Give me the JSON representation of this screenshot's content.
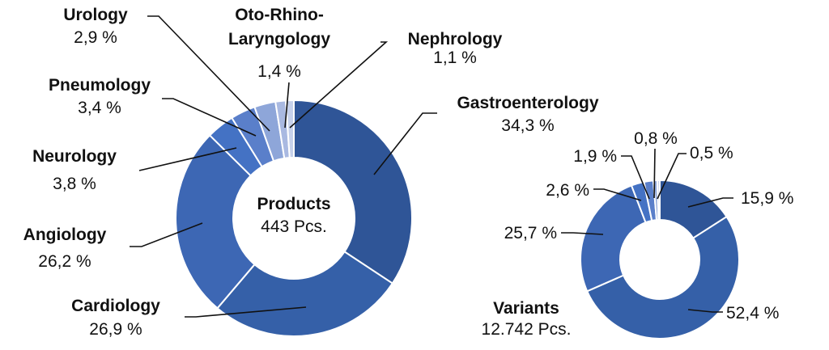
{
  "chart_data": [
    {
      "type": "pie",
      "donut": true,
      "center_title": "Products",
      "center_value": "443 Pcs.",
      "labels": [
        "Gastroenterology",
        "Cardiology",
        "Angiology",
        "Neurology",
        "Pneumology",
        "Urology",
        "Oto-Rhino-Laryngology",
        "Nephrology"
      ],
      "label_lines": {
        "ORL1": "Oto-Rhino-",
        "ORL2": "Laryngology"
      },
      "values": [
        34.3,
        26.9,
        26.2,
        3.8,
        3.4,
        2.9,
        1.4,
        1.1
      ],
      "value_labels": [
        "34,3 %",
        "26,9 %",
        "26,2 %",
        "3,8 %",
        "3,4 %",
        "2,9 %",
        "1,4 %",
        "1,1 %"
      ],
      "colors": [
        "#2f5597",
        "#3560a8",
        "#3d67b4",
        "#4472c4",
        "#5a7fca",
        "#8ea6d9",
        "#a9b9e1",
        "#c6d1eb"
      ]
    },
    {
      "type": "pie",
      "donut": true,
      "center_title": "Variants",
      "center_value": "12.742 Pcs.",
      "values": [
        15.9,
        52.4,
        25.7,
        2.6,
        1.9,
        0.8,
        0.5
      ],
      "value_labels": [
        "15,9 %",
        "52,4 %",
        "25,7 %",
        "2,6 %",
        "1,9 %",
        "0,8 %",
        "0,5 %"
      ],
      "colors": [
        "#2f5597",
        "#3560a8",
        "#3d67b4",
        "#4472c4",
        "#5a7fca",
        "#8ea6d9",
        "#c6d1eb"
      ]
    }
  ]
}
